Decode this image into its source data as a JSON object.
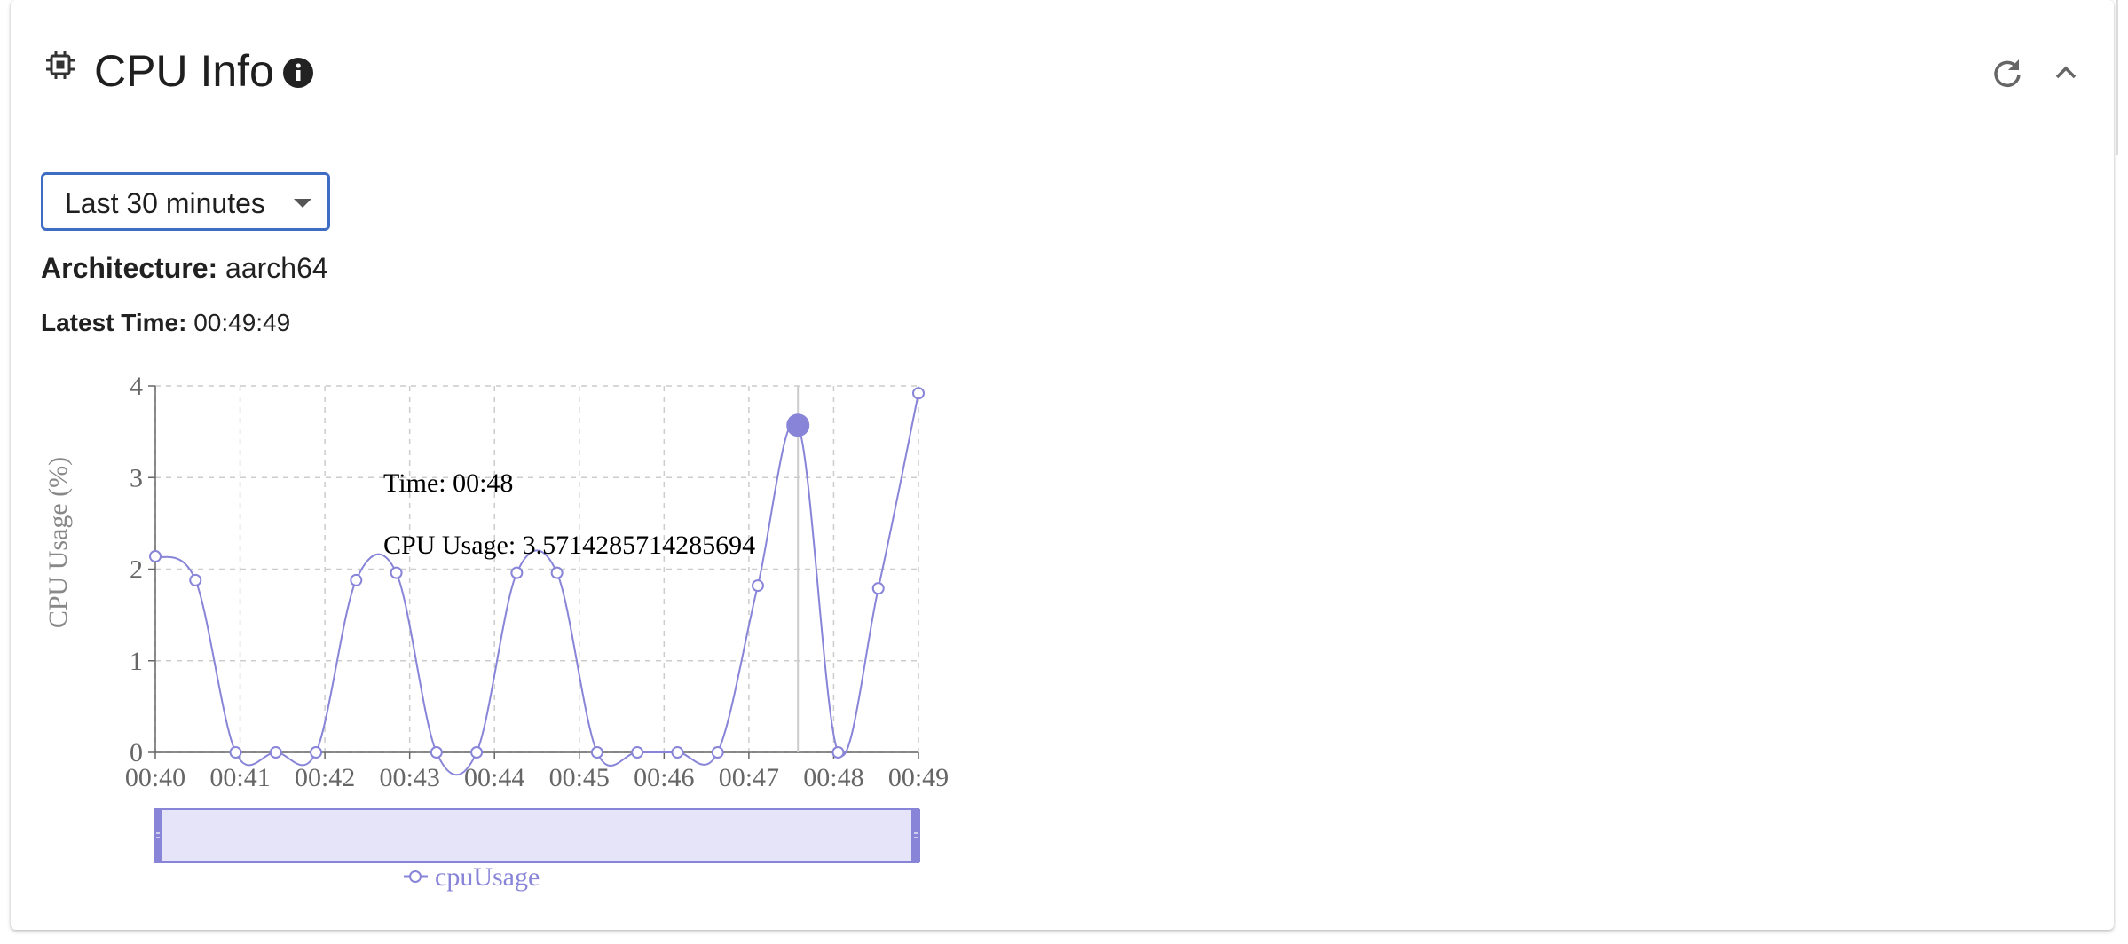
{
  "header": {
    "title": "CPU Info",
    "icons": {
      "cpu": "cpu-chip-icon",
      "info": "info-icon",
      "refresh": "refresh-icon",
      "collapse": "chevron-up-icon"
    }
  },
  "controls": {
    "time_range": {
      "selected": "Last 30 minutes"
    }
  },
  "details": {
    "architecture_label": "Architecture:",
    "architecture_value": "aarch64",
    "latest_time_label": "Latest Time:",
    "latest_time_value": "00:49:49"
  },
  "colors": {
    "series": "#8884d8",
    "brush_fill": "#e6e4f8",
    "select_border": "#3f6dc4",
    "grid": "#cccccc",
    "axis_text": "#666666"
  },
  "chart_data": {
    "type": "line",
    "title": "",
    "xlabel": "",
    "ylabel": "CPU Usage (%)",
    "xlim": [
      "00:40",
      "00:49"
    ],
    "ylim": [
      0,
      4
    ],
    "x_ticks": [
      "00:40",
      "00:41",
      "00:42",
      "00:43",
      "00:44",
      "00:45",
      "00:46",
      "00:47",
      "00:48",
      "00:49"
    ],
    "y_ticks": [
      0,
      1,
      2,
      3,
      4
    ],
    "grid": true,
    "legend": "bottom",
    "series": [
      {
        "name": "cpuUsage",
        "points": [
          {
            "x": 0.0,
            "y": 2.14
          },
          {
            "x": 0.5,
            "y": 1.88
          },
          {
            "x": 1.0,
            "y": 0
          },
          {
            "x": 1.5,
            "y": 0
          },
          {
            "x": 2.0,
            "y": 0
          },
          {
            "x": 2.5,
            "y": 1.88
          },
          {
            "x": 3.0,
            "y": 1.96
          },
          {
            "x": 3.5,
            "y": 0
          },
          {
            "x": 4.0,
            "y": 0
          },
          {
            "x": 4.5,
            "y": 1.96
          },
          {
            "x": 5.0,
            "y": 1.96
          },
          {
            "x": 5.5,
            "y": 0
          },
          {
            "x": 6.0,
            "y": 0
          },
          {
            "x": 6.5,
            "y": 0
          },
          {
            "x": 7.0,
            "y": 0
          },
          {
            "x": 7.5,
            "y": 1.82
          },
          {
            "x": 8.0,
            "y": 3.5714285714285694
          },
          {
            "x": 8.5,
            "y": 0
          },
          {
            "x": 9.0,
            "y": 1.79
          },
          {
            "x": 9.5,
            "y": 3.92
          }
        ]
      }
    ],
    "tooltip": {
      "time_label": "Time: 00:48",
      "value_label": "CPU Usage: 3.5714285714285694",
      "active_x": 8.0
    }
  }
}
